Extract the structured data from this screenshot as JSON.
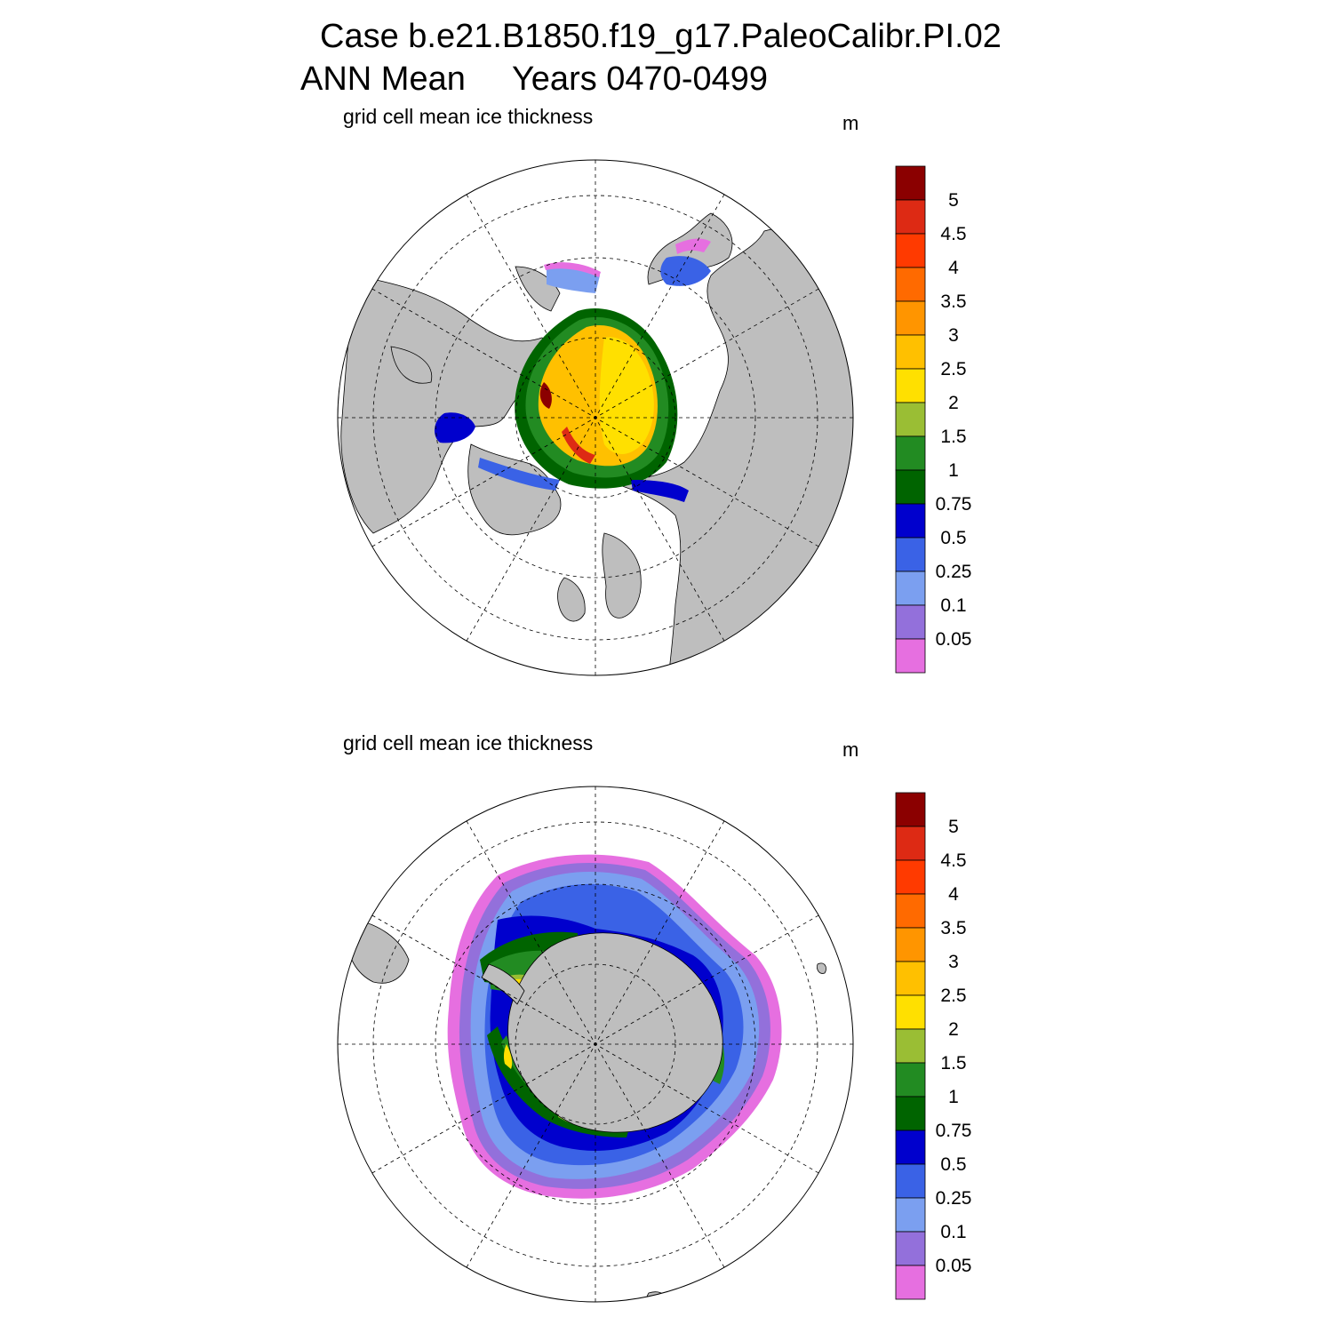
{
  "figure": {
    "title_line1": "Case b.e21.B1850.f19_g17.PaleoCalibr.PI.02",
    "title_line2": "ANN Mean     Years 0470-0499"
  },
  "panels": [
    {
      "id": "nh",
      "title": "grid cell mean ice thickness",
      "unit": "m",
      "hemisphere": "north"
    },
    {
      "id": "sh",
      "title": "grid cell mean ice thickness",
      "unit": "m",
      "hemisphere": "south"
    }
  ],
  "colorbar": {
    "labels": [
      "5",
      "4.5",
      "4",
      "3.5",
      "3",
      "2.5",
      "2",
      "1.5",
      "1",
      "0.75",
      "0.5",
      "0.25",
      "0.1",
      "0.05"
    ],
    "colors_top_to_bottom": [
      "#8b0000",
      "#dd2a14",
      "#ff3a00",
      "#ff6a00",
      "#ff9500",
      "#ffc000",
      "#ffe000",
      "#9abe34",
      "#228b22",
      "#006400",
      "#0000cd",
      "#3a62e6",
      "#7b9ff0",
      "#9370db",
      "#e66fe0"
    ],
    "land_color": "#bebebe"
  }
}
